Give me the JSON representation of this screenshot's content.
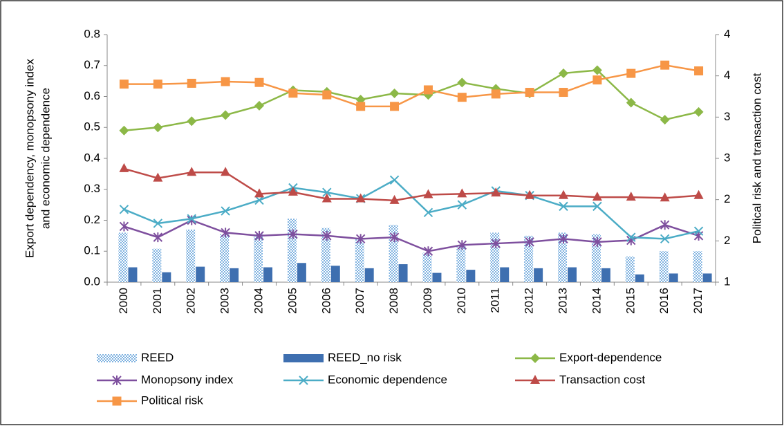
{
  "chart_data": {
    "type": "bar_line",
    "ylabel": [
      "Export dependency, monopsony index",
      "and economic dependence"
    ],
    "y2label": "Political risk and transaction cost",
    "categories": [
      "2000",
      "2001",
      "2002",
      "2003",
      "2004",
      "2005",
      "2006",
      "2007",
      "2008",
      "2009",
      "2010",
      "2011",
      "2012",
      "2013",
      "2014",
      "2015",
      "2016",
      "2017"
    ],
    "ylim": [
      0,
      0.8
    ],
    "yticks": [
      {
        "value": 0,
        "label": "0.0"
      },
      0.1,
      0.2,
      0.3,
      0.4,
      0.5,
      0.6,
      0.7,
      0.8
    ],
    "y2lim": [
      1,
      4
    ],
    "y2ticks": [
      1,
      {
        "value": 1.5,
        "label": "2"
      },
      2,
      {
        "value": 2.5,
        "label": "3"
      },
      3,
      {
        "value": 3.5,
        "label": "4"
      },
      4
    ],
    "series": [
      {
        "name": "REED",
        "kind": "bar",
        "style": "hatched",
        "color": "#9dc3e6",
        "values": [
          0.16,
          0.108,
          0.17,
          0.155,
          0.155,
          0.205,
          0.175,
          0.14,
          0.185,
          0.095,
          0.12,
          0.16,
          0.15,
          0.16,
          0.155,
          0.083,
          0.1,
          0.1
        ]
      },
      {
        "name": "REED_no risk",
        "kind": "bar",
        "style": "solid",
        "color": "#3e6fb0",
        "values": [
          0.048,
          0.032,
          0.05,
          0.045,
          0.048,
          0.062,
          0.053,
          0.045,
          0.058,
          0.03,
          0.04,
          0.048,
          0.045,
          0.048,
          0.045,
          0.025,
          0.028,
          0.028
        ]
      },
      {
        "name": "Export-dependence",
        "kind": "line",
        "marker": "diamond",
        "color": "#8cb847",
        "values": [
          0.49,
          0.5,
          0.52,
          0.54,
          0.57,
          0.62,
          0.615,
          0.59,
          0.61,
          0.605,
          0.645,
          0.625,
          0.61,
          0.675,
          0.685,
          0.58,
          0.525,
          0.55
        ]
      },
      {
        "name": "Monopsony index",
        "kind": "line",
        "marker": "asterisk",
        "color": "#7e4f9e",
        "values": [
          0.18,
          0.145,
          0.2,
          0.16,
          0.15,
          0.155,
          0.15,
          0.14,
          0.145,
          0.1,
          0.12,
          0.125,
          0.13,
          0.14,
          0.13,
          0.135,
          0.185,
          0.15
        ]
      },
      {
        "name": "Economic dependence",
        "kind": "line",
        "marker": "x",
        "color": "#4bacc6",
        "values": [
          0.235,
          0.19,
          0.205,
          0.23,
          0.265,
          0.305,
          0.29,
          0.27,
          0.33,
          0.225,
          0.25,
          0.295,
          0.28,
          0.245,
          0.245,
          0.145,
          0.14,
          0.165
        ]
      },
      {
        "name": "Transaction cost",
        "kind": "line",
        "marker": "triangle",
        "color": "#be4b48",
        "axis": "y2",
        "values": [
          2.375,
          2.26,
          2.33,
          2.33,
          2.07,
          2.09,
          2.01,
          2.01,
          1.99,
          2.06,
          2.07,
          2.08,
          2.05,
          2.05,
          2.03,
          2.03,
          2.02,
          2.05
        ]
      },
      {
        "name": "Political risk",
        "kind": "line",
        "marker": "square",
        "color": "#f79646",
        "axis": "y2",
        "values": [
          3.4,
          3.4,
          3.41,
          3.43,
          3.42,
          3.29,
          3.27,
          3.13,
          3.13,
          3.33,
          3.24,
          3.28,
          3.3,
          3.3,
          3.45,
          3.53,
          3.63,
          3.56
        ]
      }
    ]
  }
}
